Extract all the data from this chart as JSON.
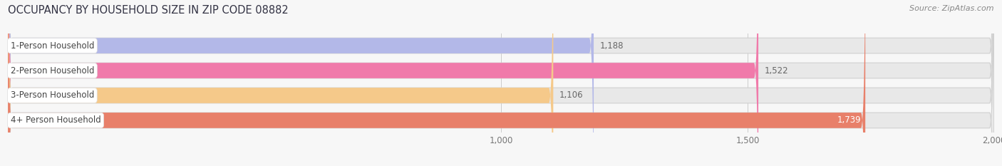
{
  "title": "OCCUPANCY BY HOUSEHOLD SIZE IN ZIP CODE 08882",
  "source": "Source: ZipAtlas.com",
  "categories": [
    "1-Person Household",
    "2-Person Household",
    "3-Person Household",
    "4+ Person Household"
  ],
  "values": [
    1188,
    1522,
    1106,
    1739
  ],
  "bar_colors": [
    "#b3b8e8",
    "#f07aaa",
    "#f5c98a",
    "#e8806a"
  ],
  "value_label_colors": [
    "#666666",
    "#666666",
    "#666666",
    "#ffffff"
  ],
  "xlim_min": 0,
  "xlim_max": 2000,
  "xticks": [
    1000,
    1500,
    2000
  ],
  "xtick_labels": [
    "1,000",
    "1,500",
    "2,000"
  ],
  "bar_height": 0.62,
  "background_color": "#f7f7f7",
  "pill_bg_color": "#e8e8e8",
  "pill_border_color": "#d0d0d0",
  "label_bg_color": "#ffffff",
  "title_fontsize": 10.5,
  "label_fontsize": 8.5,
  "value_fontsize": 8.5,
  "source_fontsize": 8,
  "title_color": "#333344",
  "label_color": "#444444",
  "source_color": "#888888"
}
